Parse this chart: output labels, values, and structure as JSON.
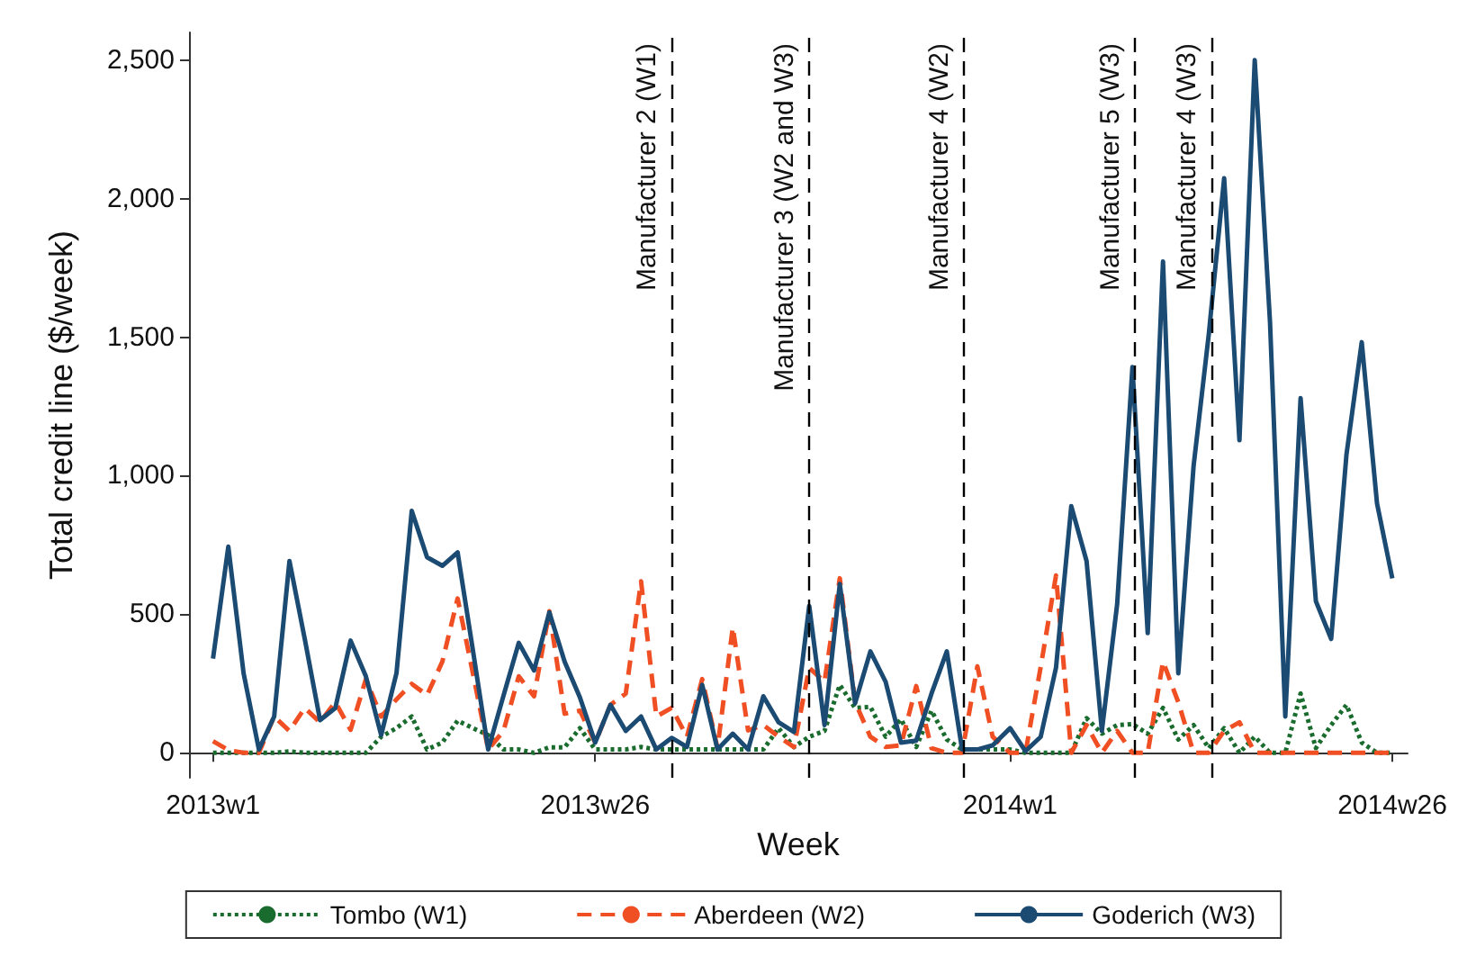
{
  "chart_data": {
    "type": "line",
    "xlabel": "Week",
    "ylabel": "Total credit line ($/week)",
    "x": [
      "2013-01-01",
      "2013-01-08",
      "2013-01-15",
      "2013-01-22",
      "2013-01-29",
      "2013-02-05",
      "2013-02-12",
      "2013-02-19",
      "2013-02-26",
      "2013-03-05",
      "2013-03-12",
      "2013-03-19",
      "2013-03-26",
      "2013-04-02",
      "2013-04-09",
      "2013-04-16",
      "2013-04-23",
      "2013-04-30",
      "2013-05-07",
      "2013-05-14",
      "2013-05-21",
      "2013-05-28",
      "2013-06-04",
      "2013-06-11",
      "2013-06-18",
      "2013-06-25",
      "2013-07-02",
      "2013-07-09",
      "2013-07-16",
      "2013-07-23",
      "2013-07-30",
      "2013-08-06",
      "2013-08-13",
      "2013-08-20",
      "2013-08-27",
      "2013-09-03",
      "2013-09-10",
      "2013-09-17",
      "2013-09-24",
      "2013-10-01",
      "2013-10-08",
      "2013-10-15",
      "2013-10-22",
      "2013-10-29",
      "2013-11-05",
      "2013-11-12",
      "2013-11-19",
      "2013-11-26",
      "2013-12-03",
      "2013-12-10",
      "2013-12-17",
      "2013-12-24",
      "2014-01-01",
      "2014-01-08",
      "2014-01-15",
      "2014-01-22",
      "2014-01-29",
      "2014-02-05",
      "2014-02-12",
      "2014-02-19",
      "2014-02-26",
      "2014-03-05",
      "2014-03-12",
      "2014-03-19",
      "2014-03-26",
      "2014-04-02",
      "2014-04-09",
      "2014-04-16",
      "2014-04-23",
      "2014-04-30",
      "2014-05-07",
      "2014-05-14",
      "2014-05-21",
      "2014-05-28",
      "2014-06-04",
      "2014-06-11",
      "2014-06-18",
      "2014-06-25"
    ],
    "xlim": [
      "2012-12-21",
      "2014-07-02"
    ],
    "xticks": [
      {
        "value": "2013-01-01",
        "label": "2013w1"
      },
      {
        "value": "2013-06-25",
        "label": "2013w26"
      },
      {
        "value": "2014-01-01",
        "label": "2014w1"
      },
      {
        "value": "2014-06-25",
        "label": "2014w26"
      }
    ],
    "ylim": [
      -90,
      2600
    ],
    "yticks": [
      0,
      500,
      {
        "value": 1000,
        "label": "1,000"
      },
      {
        "value": 1500,
        "label": "1,500"
      },
      {
        "value": 2000,
        "label": "2,000"
      },
      {
        "value": 2500,
        "label": "2,500"
      }
    ],
    "grid": false,
    "legend": "bottom",
    "marker": "none",
    "series": [
      {
        "name": "Tombo (W1)",
        "color": "#1a6b2e",
        "line_style": "dotted",
        "values": [
          0,
          0,
          0,
          0,
          0,
          5,
          0,
          0,
          0,
          0,
          0,
          58,
          89,
          131,
          12,
          37,
          116,
          89,
          64,
          12,
          12,
          0,
          20,
          20,
          89,
          12,
          12,
          12,
          21,
          12,
          12,
          12,
          12,
          12,
          12,
          12,
          12,
          89,
          21,
          58,
          79,
          245,
          162,
          166,
          58,
          121,
          21,
          152,
          48,
          12,
          12,
          12,
          12,
          0,
          0,
          0,
          0,
          125,
          69,
          100,
          104,
          69,
          162,
          48,
          100,
          17,
          89,
          0,
          58,
          0,
          0,
          214,
          17,
          100,
          173,
          37,
          0,
          0
        ]
      },
      {
        "name": "Aberdeen (W2)",
        "color": "#f04e23",
        "line_style": "dashed",
        "values": [
          42,
          10,
          0,
          0,
          131,
          79,
          162,
          110,
          183,
          83,
          266,
          131,
          193,
          249,
          208,
          329,
          557,
          287,
          12,
          79,
          276,
          204,
          511,
          141,
          152,
          37,
          173,
          214,
          619,
          131,
          162,
          58,
          266,
          17,
          453,
          81,
          100,
          58,
          21,
          307,
          256,
          630,
          183,
          58,
          21,
          27,
          241,
          17,
          0,
          0,
          312,
          58,
          0,
          0,
          310,
          640,
          0,
          100,
          0,
          79,
          0,
          0,
          329,
          183,
          0,
          0,
          79,
          110,
          0,
          0,
          0,
          0,
          0,
          0,
          0,
          0,
          0,
          0
        ]
      },
      {
        "name": "Goderich (W3)",
        "color": "#1b4a72",
        "line_style": "solid",
        "values": [
          340,
          744,
          287,
          12,
          131,
          692,
          411,
          118,
          162,
          405,
          276,
          64,
          287,
          873,
          706,
          675,
          723,
          370,
          12,
          206,
          397,
          297,
          507,
          329,
          200,
          37,
          173,
          79,
          131,
          12,
          54,
          21,
          245,
          12,
          69,
          12,
          204,
          110,
          75,
          530,
          100,
          609,
          179,
          366,
          256,
          37,
          44,
          214,
          366,
          12,
          12,
          27,
          89,
          6,
          58,
          307,
          890,
          692,
          79,
          536,
          1392,
          432,
          1773,
          287,
          1035,
          1513,
          2074,
          1128,
          2500,
          1554,
          131,
          1280,
          547,
          411,
          1076,
          1482,
          900,
          630
        ]
      }
    ],
    "ref_lines": [
      {
        "axis": "x",
        "value": "2013-07-30",
        "label": "Manufacturer 2 (W1)",
        "color": "#000000",
        "line_style": "dashed"
      },
      {
        "axis": "x",
        "value": "2013-10-01",
        "label": "Manufacturer 3 (W2 and W3)",
        "color": "#000000",
        "line_style": "dashed"
      },
      {
        "axis": "x",
        "value": "2013-12-11",
        "label": "Manufacturer 4 (W2)",
        "color": "#000000",
        "line_style": "dashed"
      },
      {
        "axis": "x",
        "value": "2014-02-27",
        "label": "Manufacturer 5 (W3)",
        "color": "#000000",
        "line_style": "dashed"
      },
      {
        "axis": "x",
        "value": "2014-04-03",
        "label": "Manufacturer 4 (W3)",
        "color": "#000000",
        "line_style": "dashed"
      }
    ]
  }
}
